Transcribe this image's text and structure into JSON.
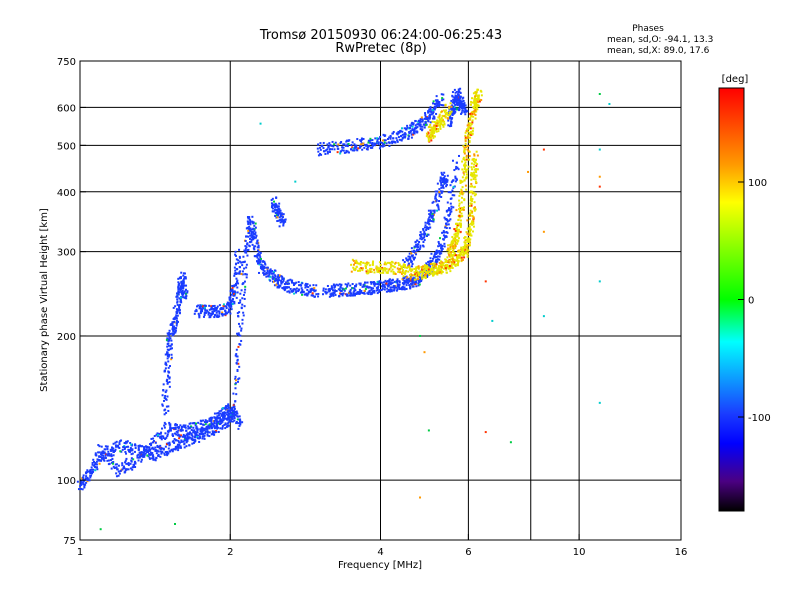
{
  "chart_data": {
    "type": "scatter",
    "title": "Tromsø 20150930 06:24:00-06:25:43",
    "subtitle": "RwPretec (8p)",
    "phase_box": {
      "heading": "Phases",
      "line_o": "mean, sd,O: -94.1, 13.3",
      "line_x": "mean, sd,X:  89.0, 17.6"
    },
    "xlabel": "Frequency [MHz]",
    "ylabel": "Stationary phase Virtual Height [km]",
    "x_scale": "log",
    "y_scale": "log",
    "xlim": [
      1,
      16
    ],
    "ylim": [
      75,
      750
    ],
    "xticks": [
      1,
      2,
      4,
      6,
      10,
      16
    ],
    "yticks": [
      75,
      100,
      200,
      300,
      400,
      500,
      600,
      750
    ],
    "grid_x": [
      2,
      4,
      6,
      8,
      10
    ],
    "grid_y": [
      100,
      200,
      300,
      400,
      500,
      600
    ],
    "grid": true,
    "colorbar": {
      "label": "[deg]",
      "range": [
        -180,
        180
      ],
      "ticks": [
        100,
        0,
        -100
      ],
      "colors": [
        "#ff0000",
        "#ffff00",
        "#00ff00",
        "#00ffff",
        "#0000ff",
        "#000000"
      ]
    },
    "point_colors": {
      "o_mode": "#1a3cff",
      "x_mode": "#e6e600",
      "other": [
        "#ff3300",
        "#ff9900",
        "#00cccc",
        "#00cc44"
      ]
    },
    "series": [
      {
        "mode": "o",
        "traces": [
          {
            "freq": [
              1.0,
              1.05,
              1.1,
              1.2,
              1.3,
              1.4,
              1.5,
              1.6,
              1.7,
              1.8,
              1.9,
              2.0,
              2.05
            ],
            "height": [
              97,
              104,
              113,
              118,
              116,
              113,
              117,
              120,
              123,
              127,
              130,
              135,
              140
            ]
          },
          {
            "freq": [
              1.1,
              1.2,
              1.3,
              1.4,
              1.5,
              1.6,
              1.7,
              1.8,
              1.9,
              2.0,
              2.1
            ],
            "height": [
              116,
              105,
              110,
              119,
              128,
              126,
              128,
              130,
              137,
              140,
              130
            ]
          },
          {
            "freq": [
              1.48,
              1.5,
              1.52,
              1.55,
              1.58,
              1.6,
              1.62
            ],
            "height": [
              140,
              175,
              200,
              215,
              240,
              265,
              240
            ]
          },
          {
            "freq": [
              1.72,
              1.8,
              1.9,
              2.0,
              2.05,
              2.08
            ],
            "height": [
              225,
              225,
              225,
              230,
              250,
              300
            ]
          },
          {
            "freq": [
              2.05,
              2.1,
              2.15,
              2.2,
              2.25,
              2.3,
              2.4,
              2.5,
              2.6,
              2.8,
              3.0
            ],
            "height": [
              150,
              220,
              300,
              350,
              310,
              280,
              270,
              260,
              255,
              250,
              248
            ]
          },
          {
            "freq": [
              2.45,
              2.5,
              2.55
            ],
            "height": [
              380,
              360,
              345
            ]
          },
          {
            "freq": [
              3.1,
              3.3,
              3.5,
              3.7,
              3.9,
              4.1,
              4.3,
              4.5,
              4.7,
              4.9,
              5.1,
              5.3,
              5.5,
              5.7
            ],
            "height": [
              248,
              249,
              250,
              251,
              252,
              254,
              256,
              258,
              262,
              270,
              285,
              310,
              360,
              470
            ]
          },
          {
            "freq": [
              4.5,
              4.7,
              4.9,
              5.1,
              5.3,
              5.4
            ],
            "height": [
              280,
              300,
              330,
              360,
              410,
              430
            ]
          },
          {
            "freq": [
              3.0,
              3.3,
              3.6,
              3.9,
              4.2,
              4.5,
              4.7,
              4.9,
              5.1,
              5.3
            ],
            "height": [
              490,
              495,
              500,
              505,
              515,
              530,
              545,
              560,
              590,
              630
            ]
          },
          {
            "freq": [
              5.5,
              5.6,
              5.7,
              5.8,
              5.9
            ],
            "height": [
              560,
              600,
              640,
              610,
              590
            ]
          }
        ]
      },
      {
        "mode": "x",
        "traces": [
          {
            "freq": [
              3.5,
              3.8,
              4.1,
              4.4,
              4.7,
              4.9,
              5.1,
              5.3,
              5.5,
              5.7,
              5.9,
              6.0,
              6.1,
              6.15,
              6.2
            ],
            "height": [
              280,
              278,
              278,
              276,
              270,
              272,
              275,
              278,
              282,
              290,
              300,
              320,
              360,
              420,
              480
            ]
          },
          {
            "freq": [
              5.5,
              5.6,
              5.7,
              5.8,
              5.9,
              6.0,
              6.1,
              6.2,
              6.3
            ],
            "height": [
              300,
              310,
              330,
              380,
              450,
              520,
              580,
              620,
              640
            ]
          },
          {
            "freq": [
              5.0,
              5.1,
              5.3,
              5.5
            ],
            "height": [
              520,
              540,
              560,
              600
            ]
          }
        ]
      }
    ],
    "scattered_points": [
      {
        "freq": 1.55,
        "height": 81
      },
      {
        "freq": 1.1,
        "height": 79
      },
      {
        "freq": 4.8,
        "height": 92
      },
      {
        "freq": 4.8,
        "height": 200
      },
      {
        "freq": 4.9,
        "height": 185
      },
      {
        "freq": 5.0,
        "height": 127
      },
      {
        "freq": 6.5,
        "height": 126
      },
      {
        "freq": 7.3,
        "height": 120
      },
      {
        "freq": 6.5,
        "height": 260
      },
      {
        "freq": 6.7,
        "height": 215
      },
      {
        "freq": 8.5,
        "height": 490
      },
      {
        "freq": 8.5,
        "height": 330
      },
      {
        "freq": 8.5,
        "height": 220
      },
      {
        "freq": 11.0,
        "height": 640
      },
      {
        "freq": 11.0,
        "height": 430
      },
      {
        "freq": 11.0,
        "height": 410
      },
      {
        "freq": 11.0,
        "height": 490
      },
      {
        "freq": 11.0,
        "height": 260
      },
      {
        "freq": 11.0,
        "height": 145
      },
      {
        "freq": 7.9,
        "height": 440
      },
      {
        "freq": 11.5,
        "height": 610
      },
      {
        "freq": 2.3,
        "height": 555
      },
      {
        "freq": 2.7,
        "height": 420
      }
    ]
  }
}
